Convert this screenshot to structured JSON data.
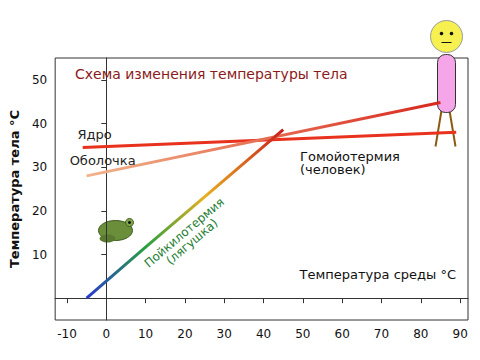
{
  "chart_data": {
    "type": "line",
    "title": "Схема изменения температуры тела",
    "x_label": "Температура среды °С",
    "y_label": "Температура тела °С",
    "series": [
      {
        "name": "Ядро",
        "color": "#e8321e",
        "x": [
          -6,
          89
        ],
        "values": [
          34.5,
          38
        ]
      },
      {
        "name": "Оболочка",
        "colors": [
          "#f2b48a",
          "#d8281e"
        ],
        "x": [
          -5,
          85
        ],
        "values": [
          28,
          44.8
        ]
      },
      {
        "name": "Пойкилотермия (лягушка)",
        "colors": [
          "#2838d0",
          "#28a040",
          "#e8b020",
          "#c81e1e"
        ],
        "x": [
          -5,
          10,
          25,
          45
        ],
        "values": [
          0,
          11.7,
          23.2,
          38.6
        ]
      }
    ],
    "annotations": [
      "Гомойотермия (человек)"
    ],
    "xlim": [
      -13,
      92
    ],
    "xticks": [
      -10,
      0,
      10,
      20,
      30,
      40,
      50,
      60,
      70,
      80,
      90
    ],
    "ylim": [
      -5,
      55
    ],
    "yticks": [
      10,
      20,
      30,
      40,
      50
    ],
    "grid": false
  }
}
